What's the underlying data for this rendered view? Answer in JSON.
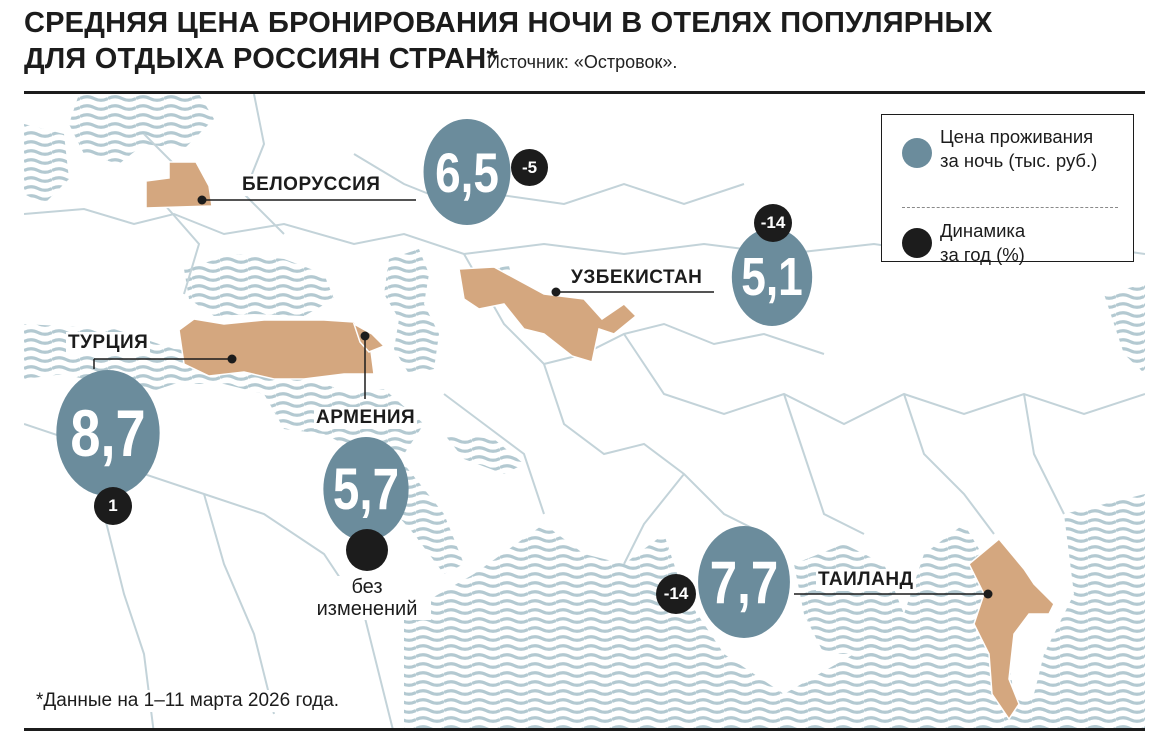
{
  "title": {
    "line1": "СРЕДНЯЯ ЦЕНА БРОНИРОВАНИЯ НОЧИ В ОТЕЛЯХ ПОПУЛЯРНЫХ",
    "line2": "ДЛЯ ОТДЫХА РОССИЯН СТРАН*"
  },
  "source": "Источник: «Островок».",
  "legend": {
    "price": "Цена проживания\nза ночь (тыс. руб.)",
    "change": "Динамика\nза год (%)"
  },
  "countries": [
    {
      "name": "БЕЛОРУССИЯ",
      "price": "6,5",
      "change": "-5"
    },
    {
      "name": "УЗБЕКИСТАН",
      "price": "5,1",
      "change": "-14"
    },
    {
      "name": "ТУРЦИЯ",
      "price": "8,7",
      "change": "1"
    },
    {
      "name": "АРМЕНИЯ",
      "price": "5,7",
      "change": "без\nизменений"
    },
    {
      "name": "ТАИЛАНД",
      "price": "7,7",
      "change": "-14"
    }
  ],
  "footnote": "*Данные на 1–11 марта 2026 года.",
  "colors": {
    "price_bubble": "#6b8c9c",
    "change_dot": "#1c1c1c",
    "highlight_country": "#d4a77f",
    "water_lines": "#b3c9d1",
    "borders": "#c3d3d9"
  }
}
